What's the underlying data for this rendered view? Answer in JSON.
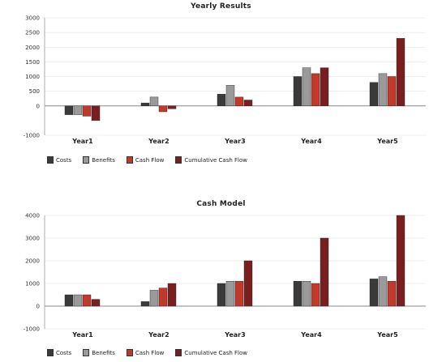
{
  "chart_data": [
    {
      "type": "bar",
      "title": "Yearly Results",
      "categories": [
        "Year1",
        "Year2",
        "Year3",
        "Year4",
        "Year5"
      ],
      "series": [
        {
          "name": "Costs",
          "color": "#3a3a3a",
          "values": [
            -300,
            100,
            400,
            1000,
            800
          ]
        },
        {
          "name": "Benefits",
          "color": "#9a9a9a",
          "values": [
            -300,
            300,
            700,
            1300,
            1100
          ]
        },
        {
          "name": "Cash Flow",
          "color": "#c0392b",
          "values": [
            -350,
            -200,
            300,
            1100,
            1000
          ]
        },
        {
          "name": "Cumulative Cash Flow",
          "color": "#7a1f1f",
          "values": [
            -500,
            -100,
            200,
            1300,
            2300
          ]
        }
      ],
      "ylim": [
        -1000,
        3000
      ],
      "yticks": [
        -1000,
        0,
        500,
        1000,
        1500,
        2000,
        2500,
        3000
      ],
      "legend": "bottom-left"
    },
    {
      "type": "bar",
      "title": "Cash Model",
      "categories": [
        "Year1",
        "Year2",
        "Year3",
        "Year4",
        "Year5"
      ],
      "series": [
        {
          "name": "Costs",
          "color": "#3a3a3a",
          "values": [
            500,
            200,
            1000,
            1100,
            1200
          ]
        },
        {
          "name": "Benefits",
          "color": "#9a9a9a",
          "values": [
            500,
            700,
            1100,
            1100,
            1300
          ]
        },
        {
          "name": "Cash Flow",
          "color": "#c0392b",
          "values": [
            500,
            800,
            1100,
            1000,
            1100
          ]
        },
        {
          "name": "Cumulative Cash Flow",
          "color": "#7a1f1f",
          "values": [
            300,
            1000,
            2000,
            3000,
            4000
          ]
        }
      ],
      "ylim": [
        -1000,
        4000
      ],
      "yticks": [
        -1000,
        0,
        1000,
        2000,
        3000,
        4000
      ],
      "legend": "bottom-left"
    }
  ]
}
